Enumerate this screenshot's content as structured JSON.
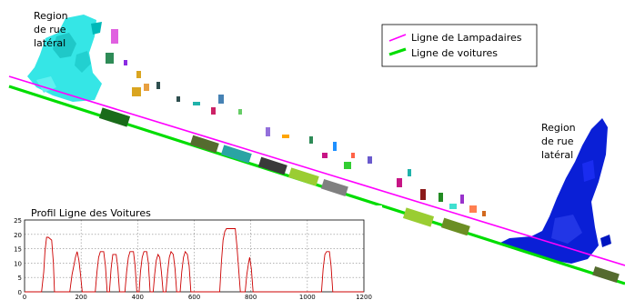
{
  "labels": {
    "region_left": [
      "Region",
      "de rue",
      "latéral"
    ],
    "region_right": [
      "Region",
      "de rue",
      "latéral"
    ]
  },
  "legend": {
    "items": [
      {
        "label": "Ligne de Lampadaires",
        "color": "#ff00ff"
      },
      {
        "label": "Ligne de voitures",
        "color": "#00dd00"
      }
    ]
  },
  "chart_data": {
    "type": "line",
    "title": "Profil Ligne des Voitures",
    "xlim": [
      0,
      1200
    ],
    "ylim": [
      0,
      25
    ],
    "x_ticks": [
      0,
      200,
      400,
      600,
      800,
      1000,
      1200
    ],
    "y_ticks": [
      0,
      5,
      10,
      15,
      20,
      25
    ],
    "x_gridlines": [
      200,
      400,
      600,
      800,
      1000
    ],
    "line_color": "#cc0000",
    "points": [
      [
        0,
        0
      ],
      [
        60,
        0
      ],
      [
        68,
        7
      ],
      [
        72,
        14
      ],
      [
        78,
        19
      ],
      [
        84,
        19
      ],
      [
        96,
        18
      ],
      [
        102,
        10
      ],
      [
        106,
        0
      ],
      [
        160,
        0
      ],
      [
        168,
        6
      ],
      [
        174,
        9
      ],
      [
        180,
        12
      ],
      [
        186,
        14
      ],
      [
        192,
        11
      ],
      [
        198,
        6
      ],
      [
        204,
        0
      ],
      [
        250,
        0
      ],
      [
        256,
        7
      ],
      [
        262,
        12
      ],
      [
        268,
        14
      ],
      [
        280,
        14
      ],
      [
        286,
        9
      ],
      [
        292,
        0
      ],
      [
        300,
        0
      ],
      [
        306,
        8
      ],
      [
        312,
        13
      ],
      [
        324,
        13
      ],
      [
        330,
        8
      ],
      [
        336,
        0
      ],
      [
        355,
        0
      ],
      [
        361,
        7
      ],
      [
        367,
        12
      ],
      [
        373,
        14
      ],
      [
        385,
        14
      ],
      [
        391,
        9
      ],
      [
        397,
        0
      ],
      [
        405,
        0
      ],
      [
        410,
        7
      ],
      [
        416,
        12
      ],
      [
        422,
        14
      ],
      [
        432,
        14
      ],
      [
        438,
        10
      ],
      [
        444,
        0
      ],
      [
        455,
        0
      ],
      [
        460,
        6
      ],
      [
        466,
        11
      ],
      [
        472,
        13
      ],
      [
        478,
        12
      ],
      [
        484,
        7
      ],
      [
        490,
        0
      ],
      [
        500,
        0
      ],
      [
        506,
        7
      ],
      [
        512,
        12
      ],
      [
        518,
        14
      ],
      [
        526,
        13
      ],
      [
        532,
        8
      ],
      [
        538,
        0
      ],
      [
        550,
        0
      ],
      [
        556,
        7
      ],
      [
        562,
        12
      ],
      [
        568,
        14
      ],
      [
        576,
        13
      ],
      [
        582,
        9
      ],
      [
        588,
        0
      ],
      [
        690,
        0
      ],
      [
        696,
        10
      ],
      [
        702,
        18
      ],
      [
        708,
        21
      ],
      [
        714,
        22
      ],
      [
        745,
        22
      ],
      [
        751,
        16
      ],
      [
        757,
        8
      ],
      [
        763,
        0
      ],
      [
        780,
        0
      ],
      [
        786,
        6
      ],
      [
        792,
        10
      ],
      [
        796,
        12
      ],
      [
        802,
        8
      ],
      [
        808,
        0
      ],
      [
        1050,
        0
      ],
      [
        1056,
        8
      ],
      [
        1062,
        13
      ],
      [
        1068,
        14
      ],
      [
        1078,
        14
      ],
      [
        1084,
        9
      ],
      [
        1090,
        0
      ],
      [
        1200,
        0
      ]
    ]
  }
}
